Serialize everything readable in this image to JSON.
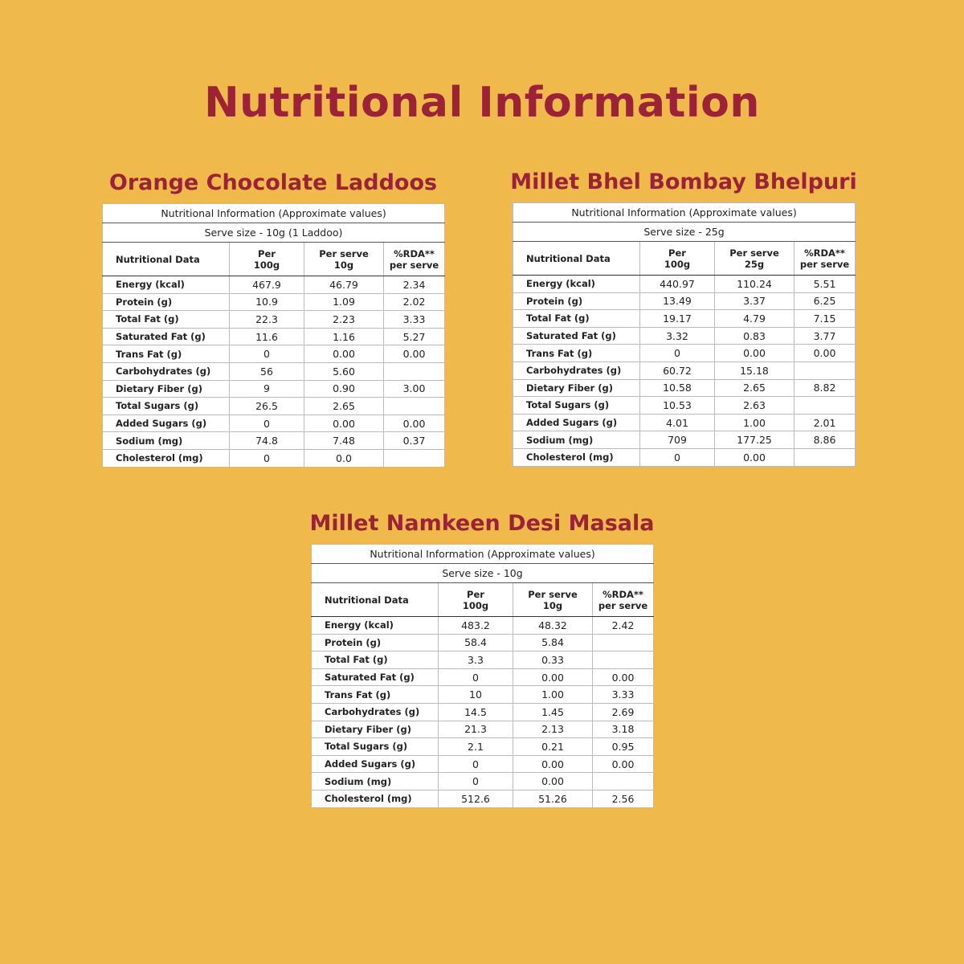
{
  "title": "Nutritional Information",
  "products": [
    {
      "name": "Orange Chocolate Laddoos",
      "caption": "Nutritional Information (Approximate values)",
      "serve_size": "Serve size - 10g (1 Laddoo)",
      "header": [
        [
          "Nutritional Data"
        ],
        [
          "Per",
          "100g"
        ],
        [
          "Per serve",
          "10g"
        ],
        [
          "%RDA**",
          "per serve"
        ]
      ],
      "rows": [
        [
          "Energy (kcal)",
          "467.9",
          "46.79",
          "2.34"
        ],
        [
          "Protein (g)",
          "10.9",
          "1.09",
          "2.02"
        ],
        [
          "Total Fat (g)",
          "22.3",
          "2.23",
          "3.33"
        ],
        [
          "Saturated Fat (g)",
          "11.6",
          "1.16",
          "5.27"
        ],
        [
          "Trans Fat (g)",
          "0",
          "0.00",
          "0.00"
        ],
        [
          "Carbohydrates (g)",
          "56",
          "5.60",
          null
        ],
        [
          "Dietary Fiber (g)",
          "9",
          "0.90",
          "3.00"
        ],
        [
          "Total Sugars (g)",
          "26.5",
          "2.65",
          null
        ],
        [
          "Added Sugars (g)",
          "0",
          "0.00",
          "0.00"
        ],
        [
          "Sodium (mg)",
          "74.8",
          "7.48",
          "0.37"
        ],
        [
          "Cholesterol (mg)",
          "0",
          "0.0",
          null
        ]
      ]
    },
    {
      "name": "Millet Bhel Bombay Bhelpuri",
      "caption": "Nutritional Information (Approximate values)",
      "serve_size": "Serve size - 25g",
      "header": [
        [
          "Nutritional Data"
        ],
        [
          "Per",
          "100g"
        ],
        [
          "Per serve",
          "25g"
        ],
        [
          "%RDA**",
          "per serve"
        ]
      ],
      "rows": [
        [
          "Energy (kcal)",
          "440.97",
          "110.24",
          "5.51"
        ],
        [
          "Protein (g)",
          "13.49",
          "3.37",
          "6.25"
        ],
        [
          "Total Fat (g)",
          "19.17",
          "4.79",
          "7.15"
        ],
        [
          "Saturated Fat (g)",
          "3.32",
          "0.83",
          "3.77"
        ],
        [
          "Trans Fat (g)",
          "0",
          "0.00",
          "0.00"
        ],
        [
          "Carbohydrates (g)",
          "60.72",
          "15.18",
          null
        ],
        [
          "Dietary Fiber (g)",
          "10.58",
          "2.65",
          "8.82"
        ],
        [
          "Total Sugars (g)",
          "10.53",
          "2.63",
          null
        ],
        [
          "Added Sugars (g)",
          "4.01",
          "1.00",
          "2.01"
        ],
        [
          "Sodium (mg)",
          "709",
          "177.25",
          "8.86"
        ],
        [
          "Cholesterol (mg)",
          "0",
          "0.00",
          null
        ]
      ]
    },
    {
      "name": "Millet Namkeen Desi Masala",
      "caption": "Nutritional Information (Approximate values)",
      "serve_size": "Serve size - 10g",
      "header": [
        [
          "Nutritional Data"
        ],
        [
          "Per",
          "100g"
        ],
        [
          "Per serve",
          "10g"
        ],
        [
          "%RDA**",
          "per serve"
        ]
      ],
      "rows": [
        [
          "Energy (kcal)",
          "483.2",
          "48.32",
          "2.42"
        ],
        [
          "Protein (g)",
          "58.4",
          "5.84",
          null
        ],
        [
          "Total Fat (g)",
          "3.3",
          "0.33",
          null
        ],
        [
          "Saturated Fat (g)",
          "0",
          "0.00",
          "0.00"
        ],
        [
          "Trans Fat (g)",
          "10",
          "1.00",
          "3.33"
        ],
        [
          "Carbohydrates (g)",
          "14.5",
          "1.45",
          "2.69"
        ],
        [
          "Dietary Fiber (g)",
          "21.3",
          "2.13",
          "3.18"
        ],
        [
          "Total Sugars (g)",
          "2.1",
          "0.21",
          "0.95"
        ],
        [
          "Added Sugars (g)",
          "0",
          "0.00",
          "0.00"
        ],
        [
          "Sodium (mg)",
          "0",
          "0.00",
          null
        ],
        [
          "Cholesterol (mg)",
          "512.6",
          "51.26",
          "2.56"
        ]
      ]
    }
  ]
}
